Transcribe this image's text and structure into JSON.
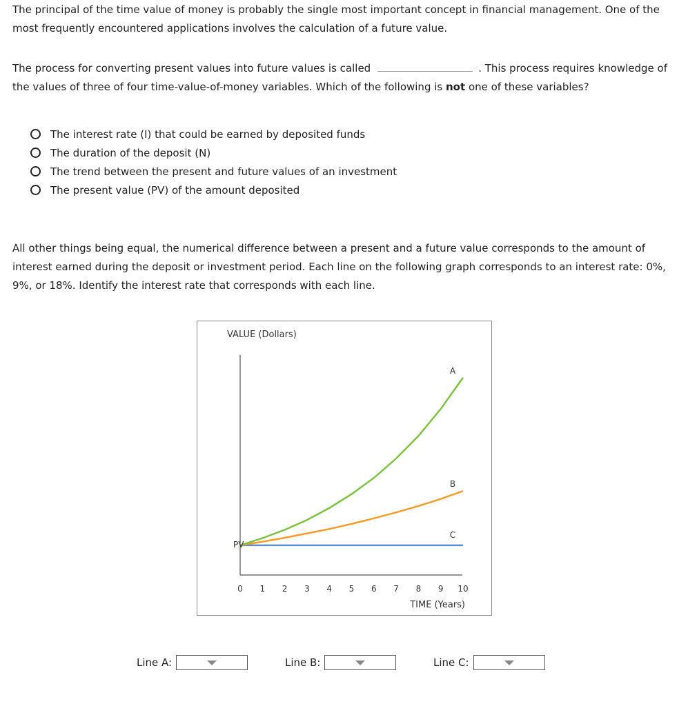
{
  "intro": "The principal of the time value of money is probably the single most important concept in financial management. One of the most frequently encountered applications involves the calculation of a future value.",
  "question1": {
    "before_blank": "The process for converting present values into future values is called",
    "after_blank": ". This process requires knowledge of the values of three of four time-value-of-money variables. Which of the following is",
    "bold": "not",
    "end": "one of these variables?",
    "options": [
      "The interest rate (I) that could be earned by deposited funds",
      "The duration of the deposit (N)",
      "The trend between the present and future values of an investment",
      "The present value (PV) of the amount deposited"
    ]
  },
  "question2": "All other things being equal, the numerical difference between a present and a future value corresponds to the amount of interest earned during the deposit or investment period. Each line on the following graph corresponds to an interest rate: 0%, 9%, or 18%. Identify the interest rate that corresponds with each line.",
  "chart_data": {
    "type": "line",
    "ylabel": "VALUE (Dollars)",
    "xlabel": "TIME (Years)",
    "x": [
      0,
      1,
      2,
      3,
      4,
      5,
      6,
      7,
      8,
      9,
      10
    ],
    "xlim": [
      0,
      10
    ],
    "ylim": [
      0.25,
      5.8
    ],
    "pv_label": "PV",
    "grid": false,
    "series": [
      {
        "name": "A",
        "color": "#7dc242",
        "values": [
          1,
          1.18,
          1.39,
          1.64,
          1.94,
          2.29,
          2.7,
          3.19,
          3.76,
          4.44,
          5.23
        ]
      },
      {
        "name": "B",
        "color": "#f39c2c",
        "values": [
          1,
          1.09,
          1.19,
          1.3,
          1.41,
          1.54,
          1.68,
          1.83,
          1.99,
          2.17,
          2.37
        ]
      },
      {
        "name": "C",
        "color": "#5b8fcf",
        "values": [
          1,
          1,
          1,
          1,
          1,
          1,
          1,
          1,
          1,
          1,
          1
        ]
      }
    ]
  },
  "answers": [
    {
      "label": "Line A:",
      "value": ""
    },
    {
      "label": "Line B:",
      "value": ""
    },
    {
      "label": "Line C:",
      "value": ""
    }
  ]
}
